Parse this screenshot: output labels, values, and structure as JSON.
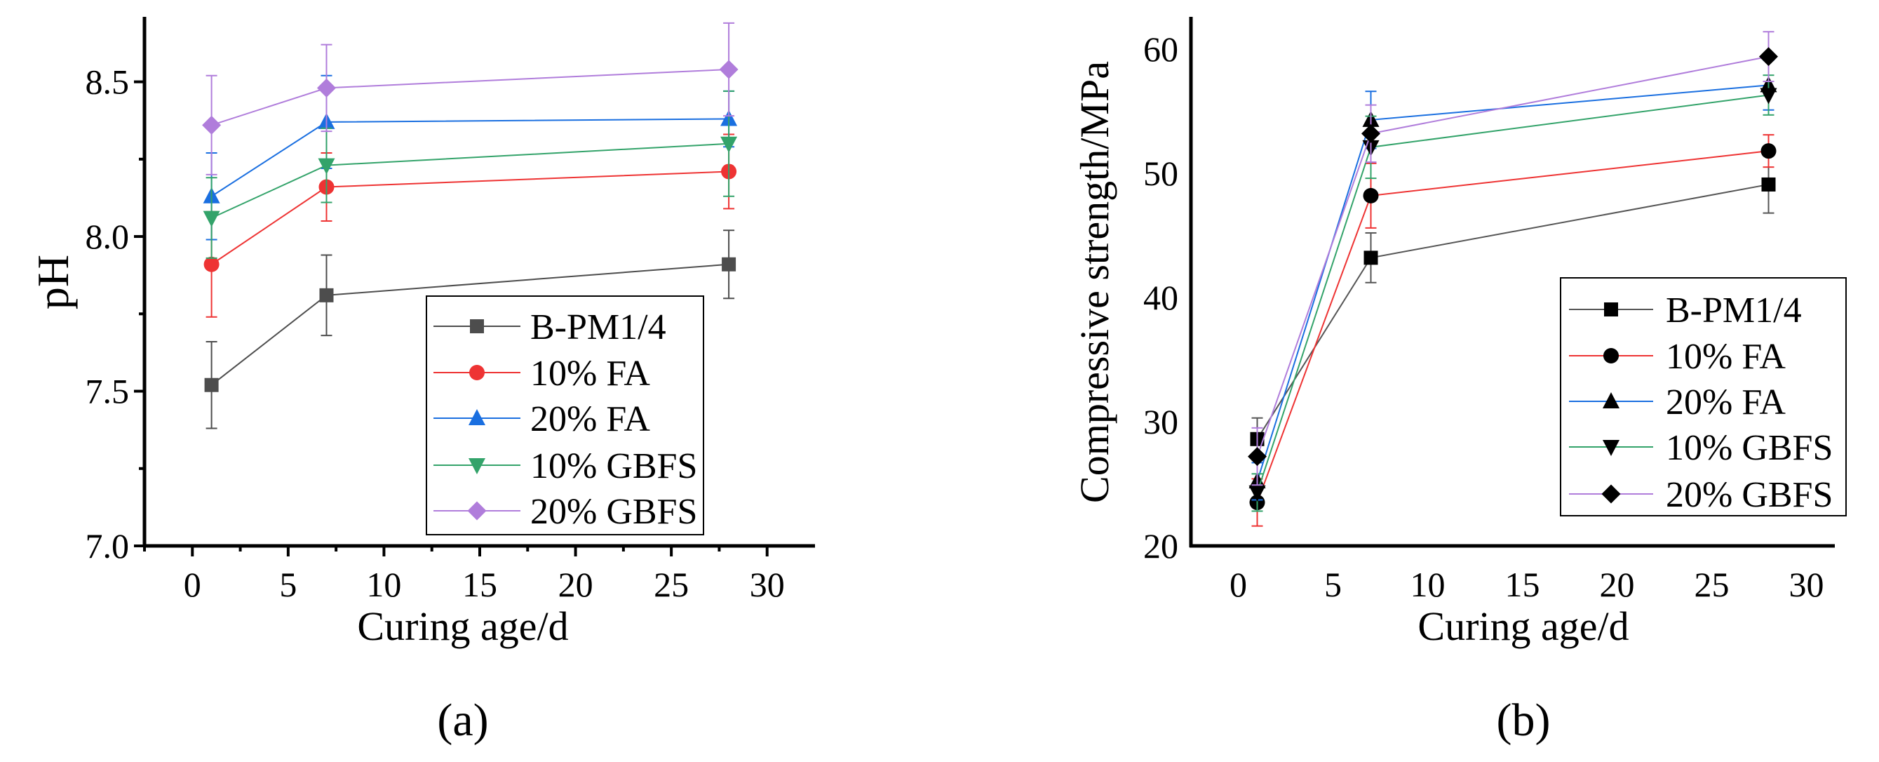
{
  "chart_data": [
    {
      "type": "line",
      "panel_label": "(a)",
      "xlabel": "Curing age/d",
      "ylabel": "pH",
      "xlim": [
        -2.5,
        32.5
      ],
      "ylim": [
        7.0,
        8.71
      ],
      "xticks": [
        "0",
        "5",
        "10",
        "15",
        "20",
        "25",
        "30"
      ],
      "yticks": [
        "7.0",
        "7.5",
        "8.0",
        "8.5"
      ],
      "grid": false,
      "legend_position": "bottom-right",
      "error_bars": true,
      "x": [
        1,
        7,
        28
      ],
      "series": [
        {
          "name": "B-PM1/4",
          "color": "#4d4d4d",
          "marker": "square",
          "values": [
            7.52,
            7.81,
            7.91
          ],
          "errors": [
            0.14,
            0.13,
            0.11
          ]
        },
        {
          "name": "10% FA",
          "color": "#ee3333",
          "marker": "circle",
          "values": [
            7.91,
            8.16,
            8.21
          ],
          "errors": [
            0.17,
            0.11,
            0.12
          ]
        },
        {
          "name": "20% FA",
          "color": "#1a6fe0",
          "marker": "triangle-up",
          "values": [
            8.13,
            8.37,
            8.38
          ],
          "errors": [
            0.14,
            0.15,
            0.09
          ]
        },
        {
          "name": "10% GBFS",
          "color": "#33a36a",
          "marker": "triangle-down",
          "values": [
            8.06,
            8.23,
            8.3
          ],
          "errors": [
            0.13,
            0.12,
            0.17
          ]
        },
        {
          "name": "20% GBFS",
          "color": "#b07ddb",
          "marker": "diamond",
          "values": [
            8.36,
            8.48,
            8.54
          ],
          "errors": [
            0.16,
            0.14,
            0.15
          ]
        }
      ]
    },
    {
      "type": "line",
      "panel_label": "(b)",
      "xlabel": "Curing age/d",
      "ylabel": "Compressive strength/MPa",
      "xlim": [
        -2.5,
        31.5
      ],
      "ylim": [
        20,
        62.6
      ],
      "xticks": [
        "0",
        "5",
        "10",
        "15",
        "20",
        "25",
        "30"
      ],
      "yticks": [
        "20",
        "30",
        "40",
        "50",
        "60"
      ],
      "grid": false,
      "legend_position": "bottom-right",
      "error_bars": true,
      "marker_color": "#000000",
      "x": [
        1,
        7,
        28
      ],
      "series": [
        {
          "name": "B-PM1/4",
          "color": "#555555",
          "marker": "square",
          "values": [
            28.6,
            43.2,
            49.1
          ],
          "errors": [
            1.7,
            2.0,
            2.3
          ]
        },
        {
          "name": "10% FA",
          "color": "#ee3333",
          "marker": "circle",
          "values": [
            23.5,
            48.2,
            51.8
          ],
          "errors": [
            1.9,
            2.6,
            1.3
          ]
        },
        {
          "name": "20% FA",
          "color": "#1a6fe0",
          "marker": "triangle-up",
          "values": [
            25.2,
            54.3,
            57.1
          ],
          "errors": [
            1.5,
            2.3,
            2.0
          ]
        },
        {
          "name": "10% GBFS",
          "color": "#33a36a",
          "marker": "triangle-down",
          "values": [
            24.3,
            52.1,
            56.3
          ],
          "errors": [
            1.5,
            2.5,
            1.6
          ]
        },
        {
          "name": "20% GBFS",
          "color": "#b07ddb",
          "marker": "diamond",
          "values": [
            27.2,
            53.2,
            59.4
          ],
          "errors": [
            2.3,
            2.3,
            2.0
          ]
        }
      ]
    }
  ]
}
